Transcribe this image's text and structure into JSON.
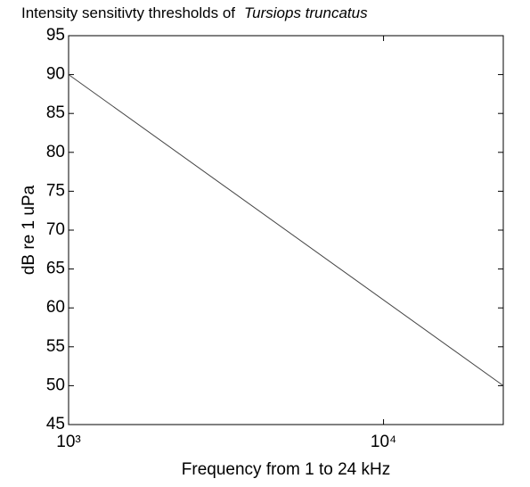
{
  "chart_data": {
    "type": "line",
    "title_parts": [
      "Intensity sensitivty thresholds of",
      "Tursiops truncatus"
    ],
    "xlabel": "Frequency from 1 to 24 kHz",
    "ylabel": "dB re 1 uPa",
    "x": [
      1000,
      24000
    ],
    "series": [
      {
        "color": "#444444",
        "values": [
          90,
          50
        ]
      }
    ],
    "xscale": "log",
    "xlim": [
      1000,
      24000
    ],
    "xticks": [
      {
        "value": 1000,
        "label": "10³"
      },
      {
        "value": 10000,
        "label": "10⁴"
      }
    ],
    "ylim": [
      45,
      95
    ],
    "yticks": [
      45,
      50,
      55,
      60,
      65,
      70,
      75,
      80,
      85,
      90,
      95
    ],
    "grid": false
  }
}
